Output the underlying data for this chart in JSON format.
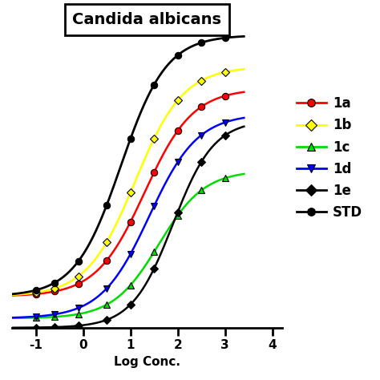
{
  "title": "Candida albicans",
  "xlabel": "Log Conc.",
  "xlim": [
    -1.5,
    4.2
  ],
  "ylim": [
    -8,
    85
  ],
  "xticks": [
    -1,
    0,
    1,
    2,
    3,
    4
  ],
  "series": [
    {
      "label": "1a",
      "color": "#ff0000",
      "marker": "o",
      "marker_color": "#ff0000",
      "bottom": 2,
      "top": 68,
      "ec50": 1.3,
      "hill": 0.85
    },
    {
      "label": "1b",
      "color": "#ffff00",
      "marker": "D",
      "marker_color": "#ffff00",
      "bottom": 2,
      "top": 75,
      "ec50": 1.1,
      "hill": 0.85
    },
    {
      "label": "1c",
      "color": "#00dd00",
      "marker": "^",
      "marker_color": "#00dd00",
      "bottom": -5,
      "top": 42,
      "ec50": 1.6,
      "hill": 0.9
    },
    {
      "label": "1d",
      "color": "#0000ff",
      "marker": "v",
      "marker_color": "#0000ff",
      "bottom": -5,
      "top": 60,
      "ec50": 1.4,
      "hill": 0.85
    },
    {
      "label": "1e",
      "color": "#000000",
      "marker": "D",
      "marker_color": "#000000",
      "bottom": -8,
      "top": 58,
      "ec50": 1.9,
      "hill": 1.0
    },
    {
      "label": "STD",
      "color": "#000000",
      "marker": "o",
      "marker_color": "#000000",
      "bottom": 2,
      "top": 85,
      "ec50": 0.8,
      "hill": 0.9
    }
  ],
  "data_points_x": [
    -1.0,
    -0.6,
    -0.1,
    0.5,
    1.0,
    1.5,
    2.0,
    2.5,
    3.0
  ],
  "background_color": "#ffffff",
  "title_fontsize": 14,
  "label_fontsize": 11,
  "tick_fontsize": 11,
  "legend_fontsize": 12
}
